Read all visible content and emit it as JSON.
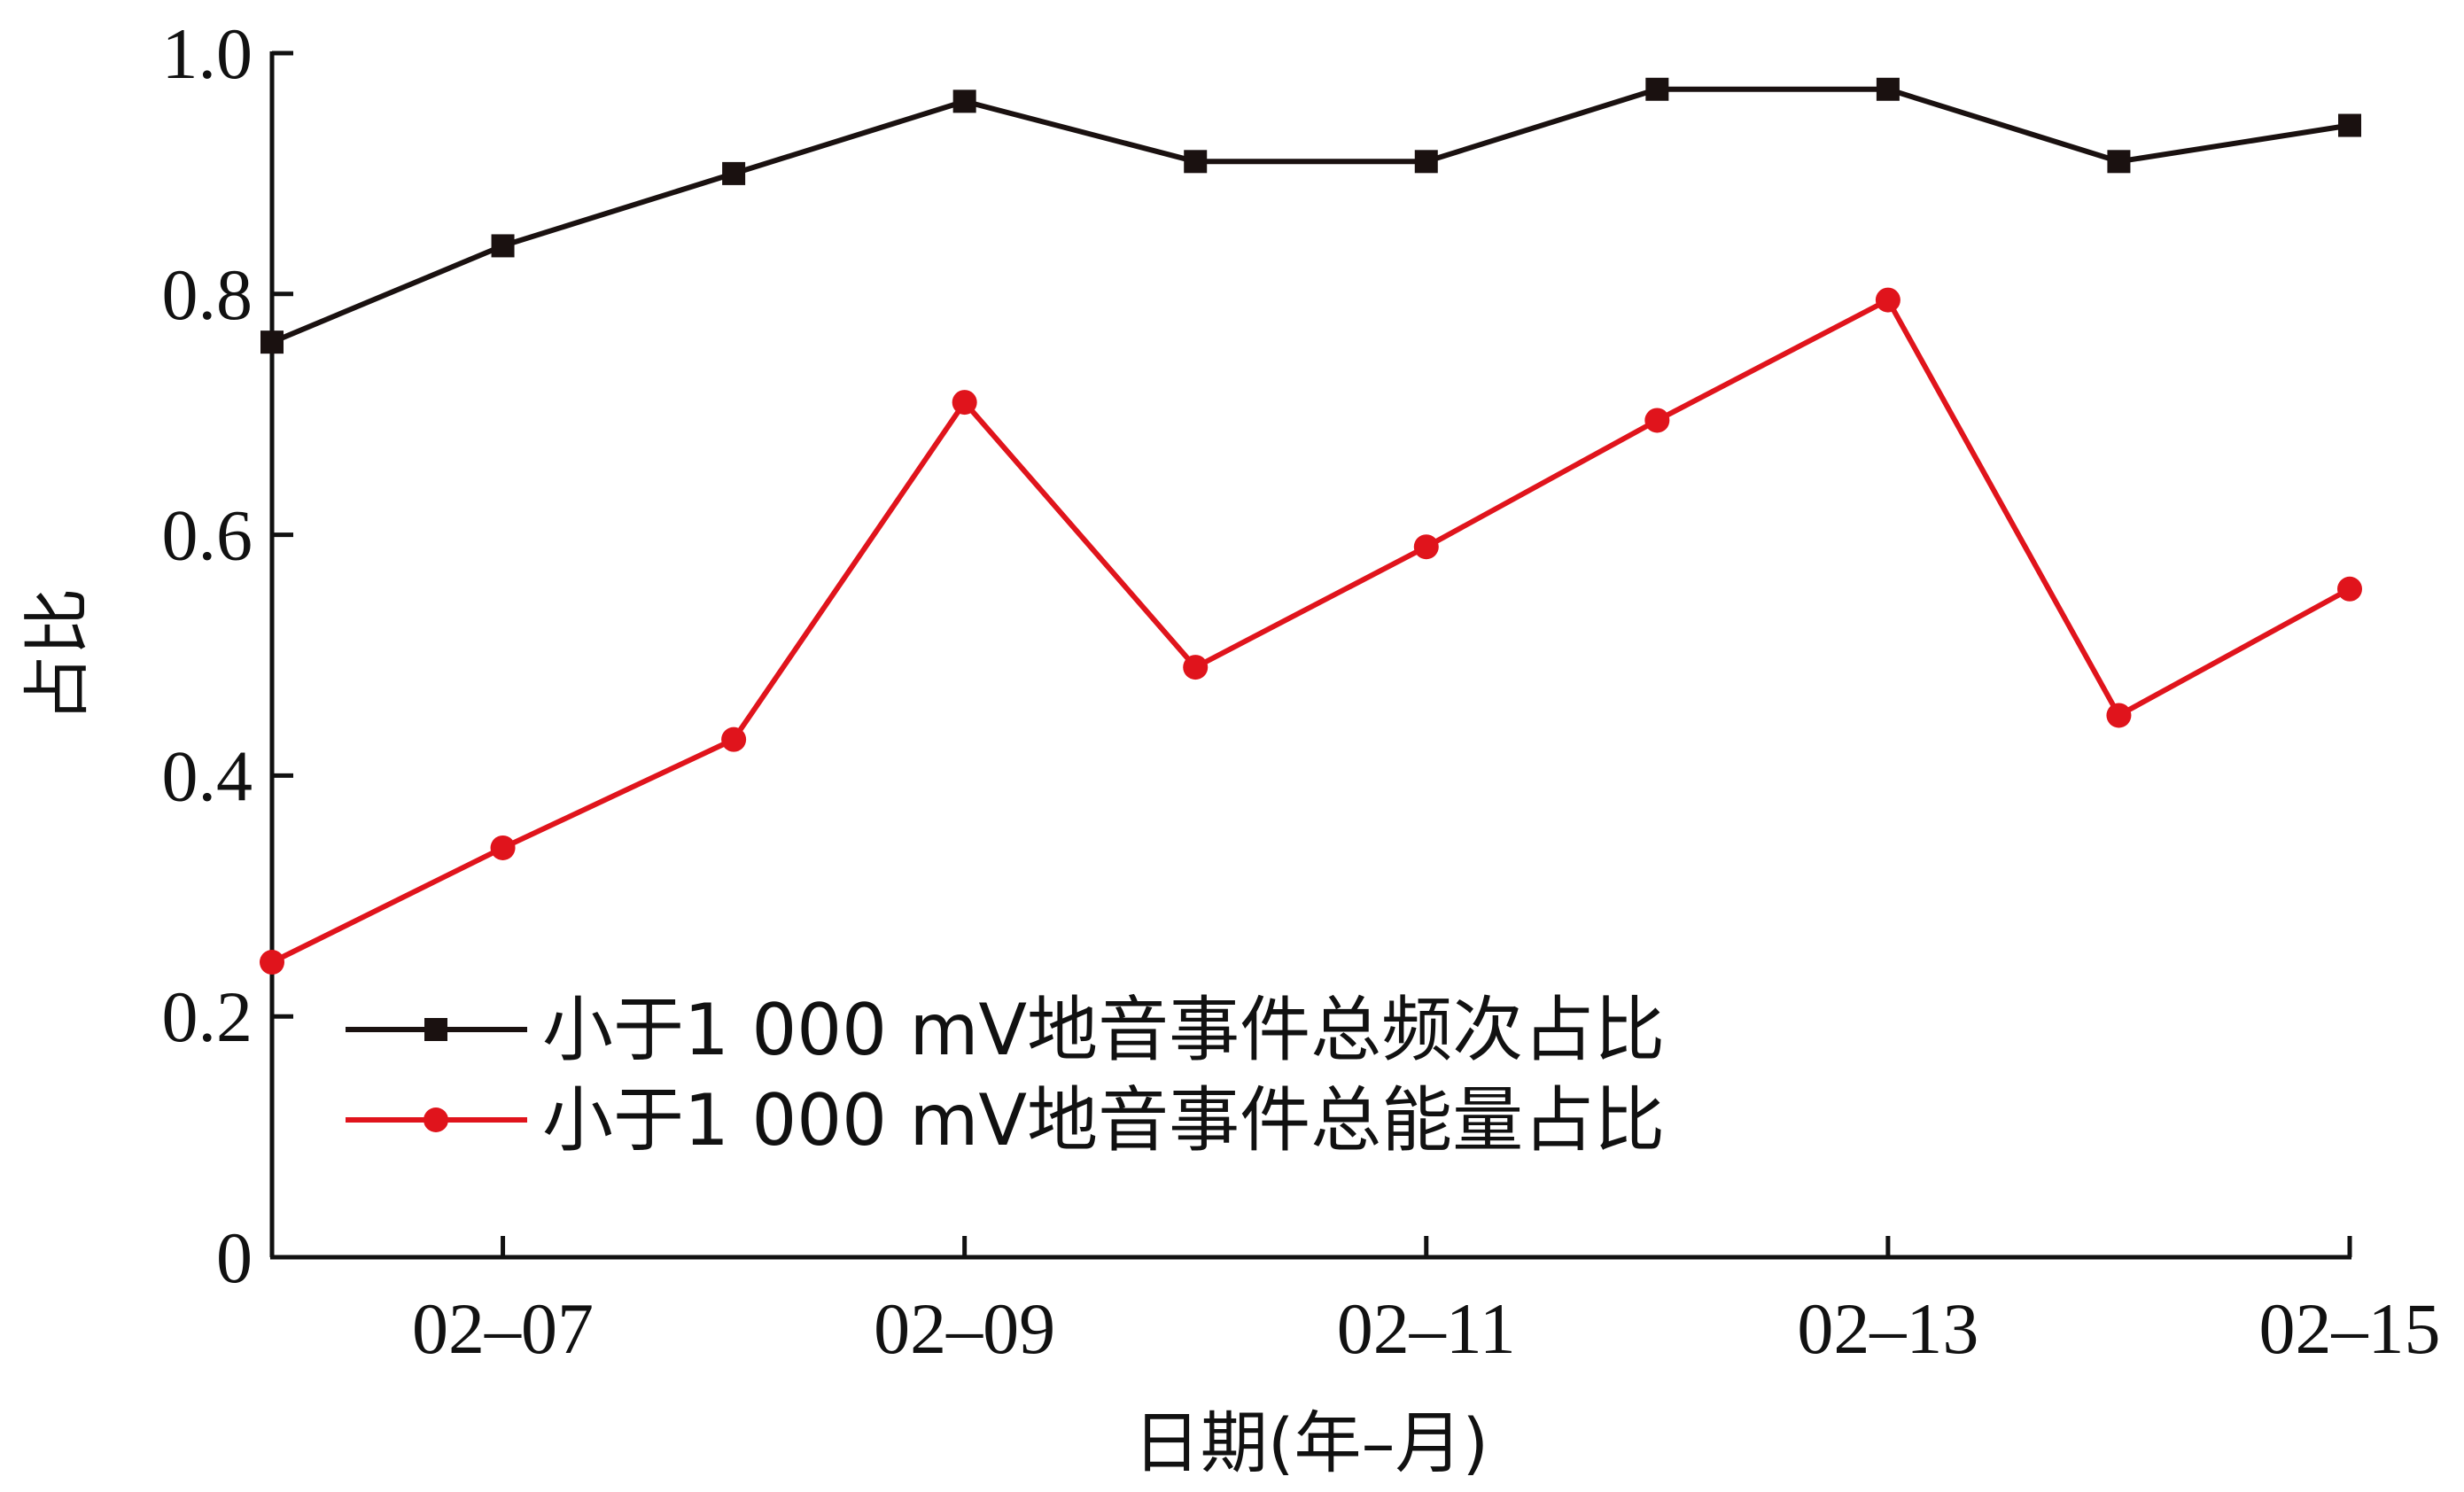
{
  "chart_data": {
    "type": "line",
    "x": [
      "02-06",
      "02-07",
      "02-08",
      "02-09",
      "02-10",
      "02-11",
      "02-12",
      "02-13",
      "02-14",
      "02-15"
    ],
    "x_tick_labels": [
      "02–07",
      "02–09",
      "02–11",
      "02–13",
      "02–15"
    ],
    "x_tick_positions": [
      "02-07",
      "02-09",
      "02-11",
      "02-13",
      "02-15"
    ],
    "xlabel": "日期(年–月)",
    "ylabel": "占比",
    "ylim": [
      0,
      1.0
    ],
    "y_ticks": [
      0,
      0.2,
      0.4,
      0.6,
      0.8,
      1.0
    ],
    "y_tick_labels": [
      "0",
      "0.2",
      "0.4",
      "0.6",
      "0.8",
      "1.0"
    ],
    "grid": false,
    "legend_position": "lower-left",
    "series": [
      {
        "name": "小于1 000 mV地音事件总频次占比",
        "color": "#1a1110",
        "marker": "square",
        "values": [
          0.76,
          0.84,
          0.9,
          0.96,
          0.91,
          0.91,
          0.97,
          0.97,
          0.91,
          0.94
        ]
      },
      {
        "name": "小于1 000 mV地音事件总能量占比",
        "color": "#e0141c",
        "marker": "circle",
        "values": [
          0.245,
          0.34,
          0.43,
          0.71,
          0.49,
          0.59,
          0.695,
          0.795,
          0.45,
          0.555
        ]
      }
    ]
  }
}
